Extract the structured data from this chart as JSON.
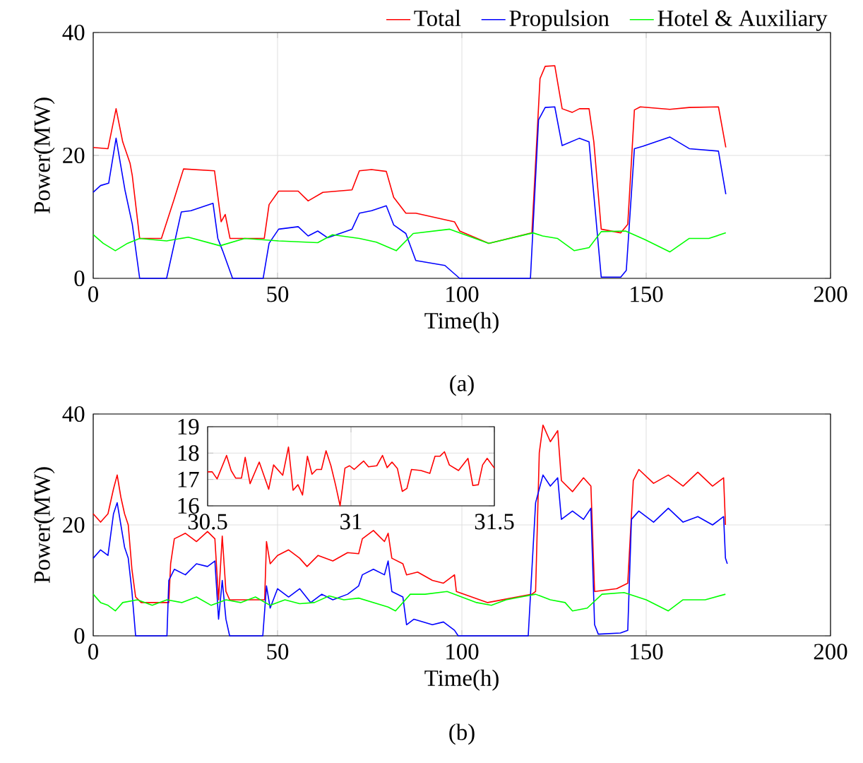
{
  "chart_data": [
    {
      "type": "line",
      "xlabel": "Time(h)",
      "ylabel": "Power(MW)",
      "xlim": [
        0,
        200
      ],
      "ylim": [
        0,
        40
      ],
      "xticks": [
        0,
        50,
        100,
        150,
        200
      ],
      "yticks": [
        0,
        20,
        40
      ],
      "grid": true,
      "legend": "top right",
      "annotations": [
        "(a)"
      ],
      "series": [
        {
          "name": "Total",
          "color": "#ff0000",
          "x": [
            0,
            4,
            6.2,
            8,
            10,
            10.6,
            12.6,
            18.5,
            21.9,
            24.5,
            32.9,
            34.7,
            35.8,
            37.1,
            46.4,
            47.7,
            50.3,
            55.6,
            58.3,
            62.3,
            70.2,
            72.2,
            75.5,
            79.5,
            81.5,
            84.8,
            87.5,
            98,
            99.4,
            107.3,
            119,
            121.2,
            122.6,
            125.2,
            127.2,
            129.9,
            131.9,
            134.5,
            135.8,
            137.8,
            143.1,
            145,
            146.8,
            148.4,
            156.4,
            161.7,
            169.6,
            171.6
          ],
          "values": [
            21.3,
            21.1,
            27.6,
            22.2,
            18.7,
            16.7,
            6.5,
            6.5,
            12.8,
            17.8,
            17.5,
            9.2,
            10.4,
            6.5,
            6.5,
            12,
            14.2,
            14.2,
            12.6,
            14,
            14.4,
            17.5,
            17.7,
            17.4,
            13.2,
            10.6,
            10.6,
            9.2,
            7.7,
            5.7,
            7.4,
            32.5,
            34.5,
            34.6,
            27.6,
            27,
            27.6,
            27.6,
            22.2,
            8,
            7.4,
            8.8,
            27.4,
            27.9,
            27.5,
            27.8,
            27.9,
            21.3
          ]
        },
        {
          "name": "Propulsion",
          "color": "#0000ff",
          "x": [
            0,
            2,
            4.2,
            6.2,
            8.6,
            10.6,
            12.6,
            19.9,
            23.9,
            26.5,
            32.5,
            33.8,
            35.1,
            37.8,
            46.1,
            47.7,
            50.3,
            55.6,
            58.3,
            60.9,
            63.6,
            70.2,
            72.2,
            75.5,
            79.5,
            81.5,
            84.8,
            87.5,
            95.4,
            99.4,
            118.6,
            120.8,
            122.6,
            125.2,
            127.2,
            131.9,
            134.5,
            137.8,
            143.1,
            144.6,
            146.8,
            149.1,
            156.4,
            161.7,
            169.6,
            171.6
          ],
          "values": [
            14,
            15.1,
            15.5,
            22.8,
            14.4,
            8.8,
            0,
            0,
            10.8,
            11,
            12.2,
            6.5,
            4.5,
            0,
            0,
            5.7,
            8,
            8.4,
            6.9,
            7.7,
            6.6,
            8,
            10.6,
            11,
            11.8,
            8.7,
            7.3,
            2.9,
            2.1,
            0,
            0,
            25.8,
            27.8,
            27.9,
            21.6,
            22.8,
            22.2,
            0.2,
            0.2,
            1.3,
            21.1,
            21.5,
            23,
            21.1,
            20.7,
            13.7
          ]
        },
        {
          "name": "Hotel & Auxiliary",
          "color": "#00ff00",
          "x": [
            0,
            2.7,
            6,
            9.3,
            12.6,
            19.9,
            25.8,
            34.4,
            41.1,
            50.3,
            60.9,
            64.9,
            72.2,
            76.8,
            82.2,
            86.8,
            96.7,
            107.3,
            119.3,
            121.9,
            125.9,
            130.5,
            134.5,
            137.8,
            144.4,
            149.7,
            156.4,
            161.7,
            167,
            171.6
          ],
          "values": [
            7.1,
            5.7,
            4.5,
            5.7,
            6.5,
            6.1,
            6.7,
            5.3,
            6.5,
            6.1,
            5.8,
            7.1,
            6.5,
            5.9,
            4.5,
            7.3,
            8,
            5.7,
            7.4,
            6.9,
            6.5,
            4.5,
            5,
            7.6,
            7.7,
            6.3,
            4.3,
            6.5,
            6.5,
            7.4
          ]
        }
      ]
    },
    {
      "type": "line",
      "xlabel": "Time(h)",
      "ylabel": "Power(MW)",
      "xlim": [
        0,
        200
      ],
      "ylim": [
        0,
        40
      ],
      "xticks": [
        0,
        50,
        100,
        150,
        200
      ],
      "yticks": [
        0,
        20,
        40
      ],
      "grid": true,
      "annotations": [
        "(b)"
      ],
      "series": [
        {
          "color": "#ff0000",
          "x": [
            0,
            2,
            4,
            5.5,
            6.5,
            7.5,
            8.5,
            9.5,
            10.5,
            11.5,
            13,
            20.5,
            21,
            22,
            25,
            28,
            31,
            33,
            34,
            35,
            36,
            37,
            46.5,
            47,
            48,
            50,
            53,
            56,
            58,
            61,
            65,
            69,
            72,
            73,
            76,
            79,
            80,
            81,
            84,
            85,
            88,
            92,
            95,
            98,
            98.5,
            107,
            119,
            120,
            121,
            122,
            124,
            126,
            127,
            130,
            133,
            135,
            136,
            142,
            145,
            146.5,
            148,
            152,
            156,
            160,
            164,
            168,
            171,
            171.5
          ],
          "values": [
            22,
            20.5,
            22,
            26.5,
            29,
            25,
            22,
            20,
            12,
            7,
            6,
            6,
            13,
            17.5,
            18.5,
            17,
            18.8,
            17.5,
            6.5,
            18,
            8,
            6.5,
            6.5,
            17,
            13,
            14.5,
            15.5,
            14,
            12.5,
            14.5,
            13.5,
            15,
            14.8,
            17.5,
            19,
            17,
            18.5,
            14,
            13,
            11,
            11.5,
            10,
            9.5,
            11,
            8,
            6,
            7.5,
            8,
            33,
            38,
            35,
            37,
            28,
            26,
            28.5,
            27,
            8,
            8.5,
            9.5,
            28,
            30,
            27.5,
            29,
            27,
            29.5,
            27,
            28.5,
            20
          ]
        },
        {
          "color": "#0000ff",
          "x": [
            0,
            2,
            4,
            5.5,
            6.5,
            7.5,
            8.5,
            9.5,
            10.5,
            11.5,
            20,
            20.5,
            22,
            25,
            28,
            31,
            33,
            34,
            35,
            36,
            37,
            46,
            47,
            48,
            50,
            53,
            56,
            59,
            62,
            65,
            69,
            72,
            73,
            76,
            79,
            80,
            81,
            84,
            85,
            87,
            92,
            95,
            98,
            99,
            118,
            120,
            122,
            124,
            126,
            127,
            130,
            133,
            135,
            136,
            137,
            143,
            145,
            146,
            148,
            152,
            156,
            160,
            164,
            168,
            171,
            171.5,
            172
          ],
          "values": [
            14,
            15.5,
            14.5,
            22,
            24,
            20,
            16,
            14,
            8,
            0,
            0,
            10,
            12,
            11,
            13,
            12.5,
            13.5,
            3,
            10,
            3,
            0,
            0,
            9,
            5,
            8.5,
            7,
            8.5,
            6,
            7.5,
            6.5,
            7.5,
            9,
            11,
            12,
            11,
            13.5,
            8,
            7,
            2,
            3,
            2,
            2.5,
            1,
            0,
            0,
            24,
            29,
            27,
            28.5,
            21,
            22.5,
            21,
            23,
            2,
            0.3,
            0.5,
            1,
            21,
            22.5,
            20.5,
            23,
            20.5,
            21.5,
            20,
            21.5,
            14,
            13
          ]
        },
        {
          "color": "#00ff00",
          "x": [
            0,
            2,
            4,
            6,
            8,
            12,
            16,
            20,
            24,
            28,
            32,
            36,
            40,
            44,
            48,
            52,
            56,
            60,
            64,
            68,
            72,
            76,
            80,
            82,
            86,
            90,
            96,
            100,
            104,
            108,
            112,
            116,
            120,
            124,
            128,
            130,
            134,
            138,
            144,
            150,
            156,
            160,
            166,
            171.5
          ],
          "values": [
            7.5,
            6,
            5.5,
            4.5,
            6,
            6.5,
            5.5,
            6.5,
            6,
            7,
            5.5,
            6.5,
            6,
            7,
            5.5,
            6.5,
            5.8,
            6,
            7.2,
            6.5,
            6.8,
            6,
            5.2,
            4.5,
            7.5,
            7.5,
            8,
            7,
            6,
            5.5,
            6.5,
            7,
            7.5,
            6.5,
            6,
            4.5,
            5,
            7.5,
            7.8,
            6.5,
            4.5,
            6.5,
            6.5,
            7.5
          ]
        }
      ]
    },
    {
      "type": "line",
      "xlim": [
        30.5,
        31.5
      ],
      "ylim": [
        16,
        19
      ],
      "xticks": [
        30.5,
        31,
        31.5
      ],
      "yticks": [
        16,
        17,
        18,
        19
      ],
      "grid": true,
      "series": [
        {
          "color": "#ff0000",
          "x": [
            30.5,
            30.516,
            30.533,
            30.566,
            30.582,
            30.598,
            30.618,
            30.631,
            30.648,
            30.68,
            30.713,
            30.73,
            30.762,
            30.782,
            30.798,
            30.815,
            30.831,
            30.848,
            30.864,
            30.88,
            30.897,
            30.913,
            30.93,
            30.946,
            30.962,
            30.979,
            30.995,
            31.011,
            31.044,
            31.061,
            31.09,
            31.11,
            31.126,
            31.143,
            31.162,
            31.179,
            31.195,
            31.211,
            31.244,
            31.275,
            31.293,
            31.31,
            31.326,
            31.343,
            31.375,
            31.408,
            31.425,
            31.444,
            31.459,
            31.475,
            31.5
          ],
          "values": [
            17.29,
            17.29,
            17.02,
            17.91,
            17.34,
            17.05,
            17.05,
            17.84,
            16.84,
            17.66,
            16.63,
            17.55,
            17.16,
            18.23,
            16.59,
            16.8,
            16.41,
            17.88,
            17.2,
            17.38,
            17.38,
            18.09,
            17.52,
            16.8,
            16,
            17.43,
            17.52,
            17.38,
            17.7,
            17.48,
            17.52,
            17.91,
            17.45,
            17.66,
            17.41,
            16.55,
            16.66,
            17.38,
            17.34,
            17.23,
            17.88,
            17.88,
            18.05,
            17.55,
            17.34,
            17.8,
            16.77,
            16.8,
            17.55,
            17.8,
            17.43
          ]
        }
      ]
    }
  ]
}
